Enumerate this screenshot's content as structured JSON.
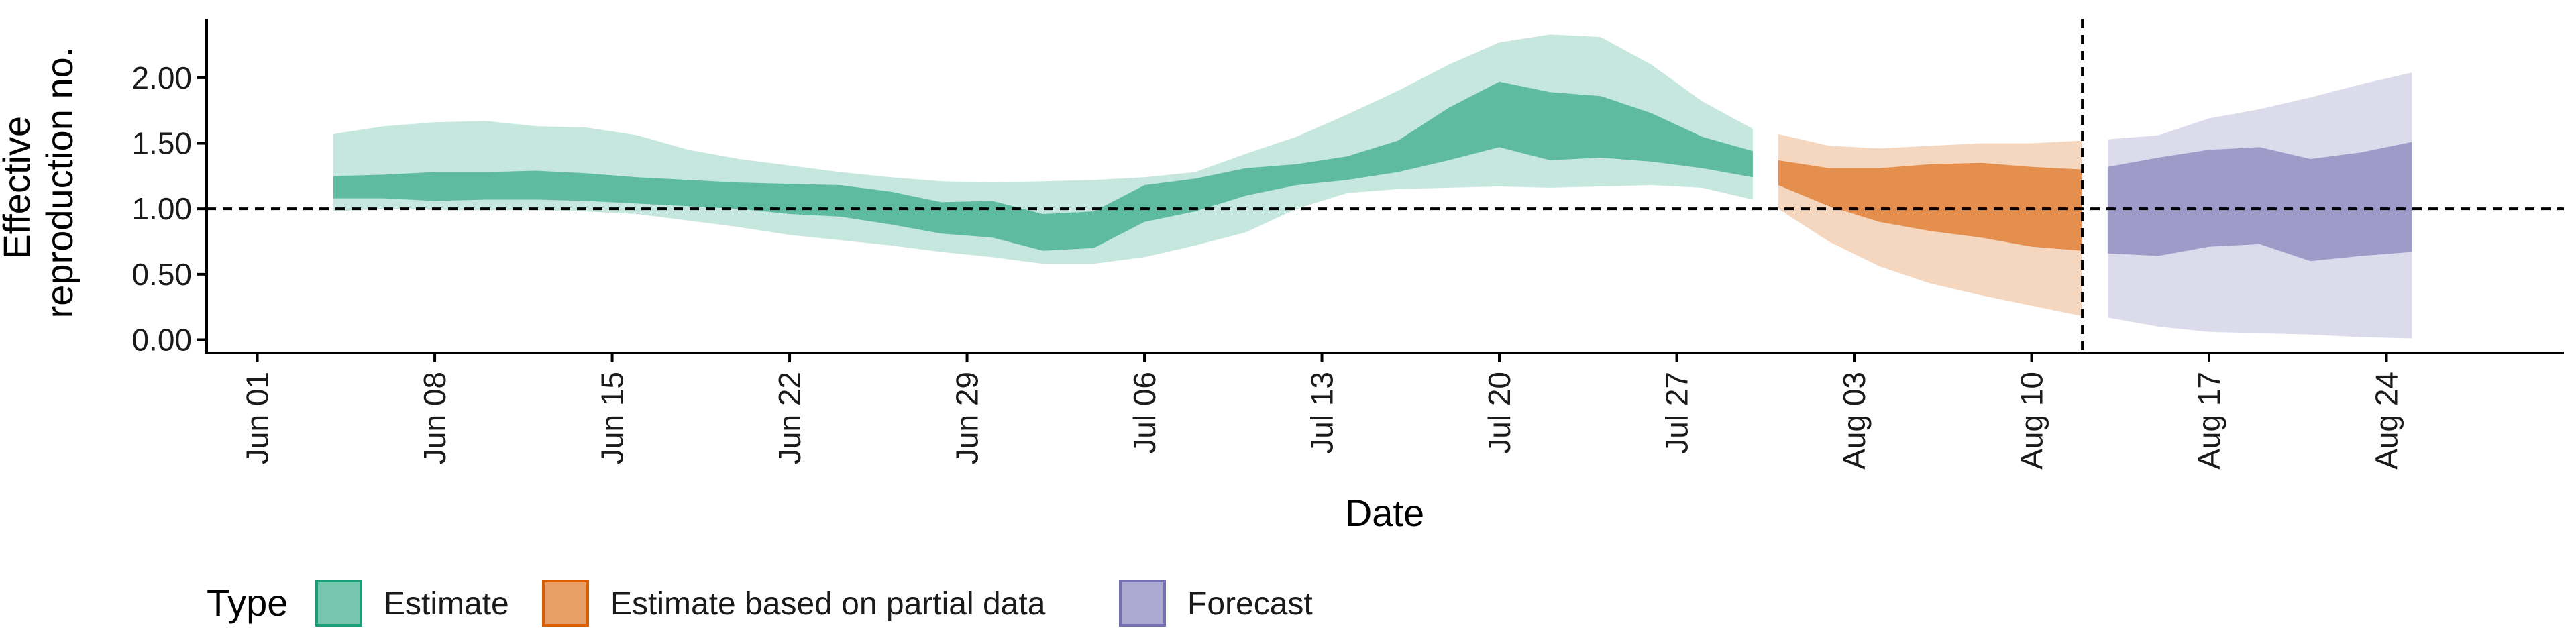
{
  "chart_data": {
    "type": "area",
    "xlabel": "Date",
    "ylabel": "Effective reproduction no.",
    "ylabel_lines": [
      "Effective",
      "reproduction no."
    ],
    "xlim": [
      "2020-05-30",
      "2020-08-31"
    ],
    "ylim": [
      -0.1,
      2.45
    ],
    "x_ticks": [
      {
        "date": "2020-06-01",
        "label": "Jun 01"
      },
      {
        "date": "2020-06-08",
        "label": "Jun 08"
      },
      {
        "date": "2020-06-15",
        "label": "Jun 15"
      },
      {
        "date": "2020-06-22",
        "label": "Jun 22"
      },
      {
        "date": "2020-06-29",
        "label": "Jun 29"
      },
      {
        "date": "2020-07-06",
        "label": "Jul 06"
      },
      {
        "date": "2020-07-13",
        "label": "Jul 13"
      },
      {
        "date": "2020-07-20",
        "label": "Jul 20"
      },
      {
        "date": "2020-07-27",
        "label": "Jul 27"
      },
      {
        "date": "2020-08-03",
        "label": "Aug 03"
      },
      {
        "date": "2020-08-10",
        "label": "Aug 10"
      },
      {
        "date": "2020-08-17",
        "label": "Aug 17"
      },
      {
        "date": "2020-08-24",
        "label": "Aug 24"
      }
    ],
    "y_ticks": [
      {
        "value": 0.0,
        "label": "0.00"
      },
      {
        "value": 0.5,
        "label": "0.50"
      },
      {
        "value": 1.0,
        "label": "1.00"
      },
      {
        "value": 1.5,
        "label": "1.50"
      },
      {
        "value": 2.0,
        "label": "2.00"
      }
    ],
    "reference_lines": {
      "hline_y": 1.0,
      "vline_date": "2020-08-12",
      "style": "dashed"
    },
    "legend": {
      "title": "Type",
      "placement": "bottom-left",
      "entries": [
        {
          "label": "Estimate",
          "color": "#1b9e77"
        },
        {
          "label": "Estimate based on partial data",
          "color": "#d95f02"
        },
        {
          "label": "Forecast",
          "color": "#7570b3"
        }
      ]
    },
    "series": [
      {
        "name": "Estimate",
        "color": "#1b9e77",
        "points": [
          {
            "date": "2020-06-04",
            "lo90": 0.98,
            "lo50": 1.08,
            "hi50": 1.25,
            "hi90": 1.57
          },
          {
            "date": "2020-06-06",
            "lo90": 1.0,
            "lo50": 1.08,
            "hi50": 1.26,
            "hi90": 1.63
          },
          {
            "date": "2020-06-08",
            "lo90": 0.99,
            "lo50": 1.06,
            "hi50": 1.28,
            "hi90": 1.66
          },
          {
            "date": "2020-06-10",
            "lo90": 0.99,
            "lo50": 1.07,
            "hi50": 1.28,
            "hi90": 1.67
          },
          {
            "date": "2020-06-12",
            "lo90": 0.99,
            "lo50": 1.07,
            "hi50": 1.29,
            "hi90": 1.63
          },
          {
            "date": "2020-06-14",
            "lo90": 0.98,
            "lo50": 1.06,
            "hi50": 1.27,
            "hi90": 1.62
          },
          {
            "date": "2020-06-16",
            "lo90": 0.96,
            "lo50": 1.04,
            "hi50": 1.24,
            "hi90": 1.56
          },
          {
            "date": "2020-06-18",
            "lo90": 0.91,
            "lo50": 1.02,
            "hi50": 1.22,
            "hi90": 1.45
          },
          {
            "date": "2020-06-20",
            "lo90": 0.86,
            "lo50": 1.0,
            "hi50": 1.2,
            "hi90": 1.38
          },
          {
            "date": "2020-06-22",
            "lo90": 0.8,
            "lo50": 0.96,
            "hi50": 1.19,
            "hi90": 1.33
          },
          {
            "date": "2020-06-24",
            "lo90": 0.76,
            "lo50": 0.94,
            "hi50": 1.18,
            "hi90": 1.28
          },
          {
            "date": "2020-06-26",
            "lo90": 0.72,
            "lo50": 0.88,
            "hi50": 1.13,
            "hi90": 1.24
          },
          {
            "date": "2020-06-28",
            "lo90": 0.67,
            "lo50": 0.81,
            "hi50": 1.05,
            "hi90": 1.21
          },
          {
            "date": "2020-06-30",
            "lo90": 0.63,
            "lo50": 0.78,
            "hi50": 1.06,
            "hi90": 1.2
          },
          {
            "date": "2020-07-02",
            "lo90": 0.58,
            "lo50": 0.68,
            "hi50": 0.96,
            "hi90": 1.21
          },
          {
            "date": "2020-07-04",
            "lo90": 0.58,
            "lo50": 0.7,
            "hi50": 0.98,
            "hi90": 1.22
          },
          {
            "date": "2020-07-06",
            "lo90": 0.63,
            "lo50": 0.9,
            "hi50": 1.18,
            "hi90": 1.24
          },
          {
            "date": "2020-07-08",
            "lo90": 0.72,
            "lo50": 0.98,
            "hi50": 1.23,
            "hi90": 1.28
          },
          {
            "date": "2020-07-10",
            "lo90": 0.82,
            "lo50": 1.1,
            "hi50": 1.31,
            "hi90": 1.42
          },
          {
            "date": "2020-07-12",
            "lo90": 1.0,
            "lo50": 1.18,
            "hi50": 1.34,
            "hi90": 1.55
          },
          {
            "date": "2020-07-14",
            "lo90": 1.12,
            "lo50": 1.22,
            "hi50": 1.4,
            "hi90": 1.72
          },
          {
            "date": "2020-07-16",
            "lo90": 1.15,
            "lo50": 1.28,
            "hi50": 1.52,
            "hi90": 1.9
          },
          {
            "date": "2020-07-18",
            "lo90": 1.16,
            "lo50": 1.37,
            "hi50": 1.77,
            "hi90": 2.1
          },
          {
            "date": "2020-07-20",
            "lo90": 1.17,
            "lo50": 1.47,
            "hi50": 1.97,
            "hi90": 2.27
          },
          {
            "date": "2020-07-22",
            "lo90": 1.16,
            "lo50": 1.37,
            "hi50": 1.89,
            "hi90": 2.33
          },
          {
            "date": "2020-07-24",
            "lo90": 1.17,
            "lo50": 1.39,
            "hi50": 1.86,
            "hi90": 2.31
          },
          {
            "date": "2020-07-26",
            "lo90": 1.18,
            "lo50": 1.36,
            "hi50": 1.73,
            "hi90": 2.1
          },
          {
            "date": "2020-07-28",
            "lo90": 1.16,
            "lo50": 1.31,
            "hi50": 1.55,
            "hi90": 1.82
          },
          {
            "date": "2020-07-30",
            "lo90": 1.07,
            "lo50": 1.24,
            "hi50": 1.44,
            "hi90": 1.61
          }
        ]
      },
      {
        "name": "Estimate based on partial data",
        "color": "#d95f02",
        "points": [
          {
            "date": "2020-07-31",
            "lo90": 1.0,
            "lo50": 1.18,
            "hi50": 1.37,
            "hi90": 1.57
          },
          {
            "date": "2020-08-02",
            "lo90": 0.75,
            "lo50": 1.02,
            "hi50": 1.31,
            "hi90": 1.48
          },
          {
            "date": "2020-08-04",
            "lo90": 0.56,
            "lo50": 0.9,
            "hi50": 1.31,
            "hi90": 1.46
          },
          {
            "date": "2020-08-06",
            "lo90": 0.43,
            "lo50": 0.83,
            "hi50": 1.34,
            "hi90": 1.48
          },
          {
            "date": "2020-08-08",
            "lo90": 0.34,
            "lo50": 0.78,
            "hi50": 1.35,
            "hi90": 1.5
          },
          {
            "date": "2020-08-10",
            "lo90": 0.26,
            "lo50": 0.71,
            "hi50": 1.32,
            "hi90": 1.5
          },
          {
            "date": "2020-08-12",
            "lo90": 0.18,
            "lo50": 0.68,
            "hi50": 1.3,
            "hi90": 1.52
          }
        ]
      },
      {
        "name": "Forecast",
        "color": "#7570b3",
        "points": [
          {
            "date": "2020-08-13",
            "lo90": 0.17,
            "lo50": 0.66,
            "hi50": 1.32,
            "hi90": 1.53
          },
          {
            "date": "2020-08-15",
            "lo90": 0.1,
            "lo50": 0.64,
            "hi50": 1.39,
            "hi90": 1.56
          },
          {
            "date": "2020-08-17",
            "lo90": 0.06,
            "lo50": 0.71,
            "hi50": 1.45,
            "hi90": 1.69
          },
          {
            "date": "2020-08-19",
            "lo90": 0.05,
            "lo50": 0.73,
            "hi50": 1.47,
            "hi90": 1.76
          },
          {
            "date": "2020-08-21",
            "lo90": 0.04,
            "lo50": 0.6,
            "hi50": 1.38,
            "hi90": 1.85
          },
          {
            "date": "2020-08-23",
            "lo90": 0.02,
            "lo50": 0.64,
            "hi50": 1.43,
            "hi90": 1.95
          },
          {
            "date": "2020-08-25",
            "lo90": 0.01,
            "lo50": 0.67,
            "hi50": 1.51,
            "hi90": 2.04
          }
        ]
      }
    ]
  }
}
